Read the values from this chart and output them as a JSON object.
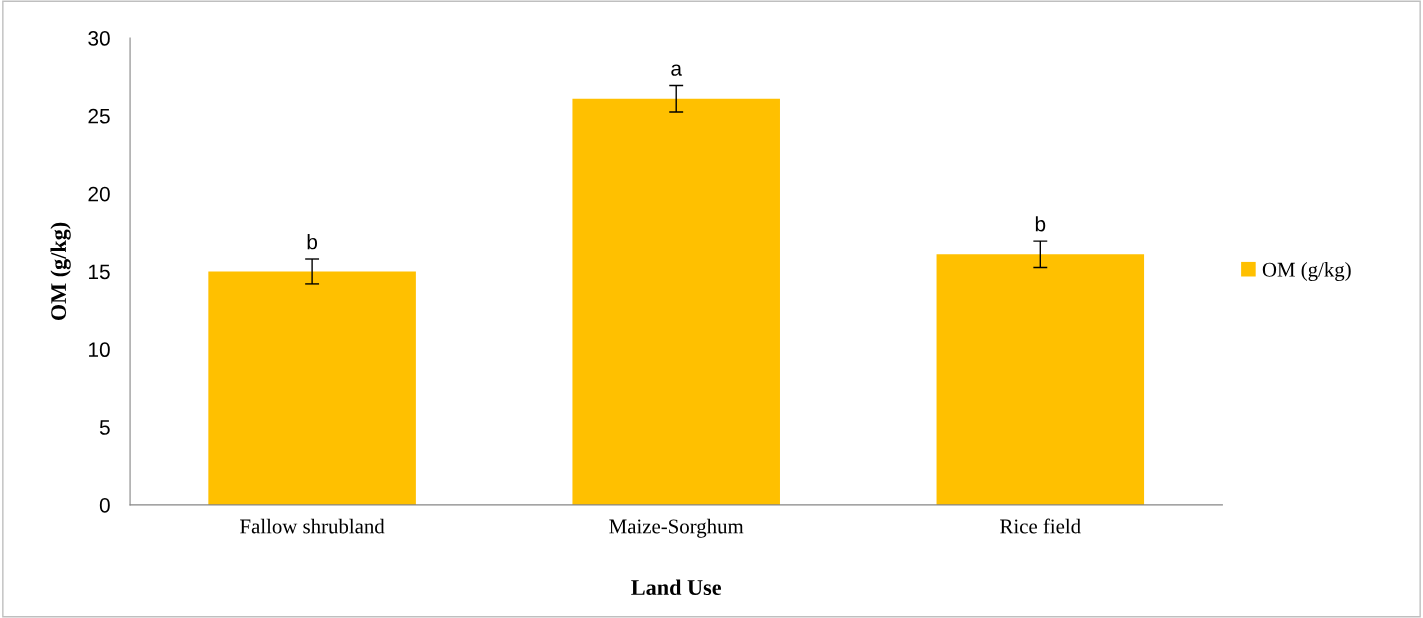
{
  "chart_data": {
    "type": "bar",
    "xlabel": "Land Use",
    "ylabel": "OM (g/kg)",
    "categories": [
      "Fallow shrubland",
      "Maize-Sorghum",
      "Rice field"
    ],
    "series": [
      {
        "name": "OM (g/kg)",
        "color": "#ffc000",
        "values": [
          15.0,
          26.1,
          16.1
        ],
        "errors": [
          0.8,
          0.85,
          0.85
        ]
      }
    ],
    "ylim": [
      0,
      30
    ],
    "yticks": [
      0,
      5,
      10,
      15,
      20,
      25,
      30
    ],
    "grid": false,
    "legend": "right",
    "annotations": [
      {
        "text": "b",
        "x": "Fallow shrubland",
        "y": 15.8
      },
      {
        "text": "a",
        "x": "Maize-Sorghum",
        "y": 26.95
      },
      {
        "text": "b",
        "x": "Rice field",
        "y": 16.95
      }
    ]
  }
}
